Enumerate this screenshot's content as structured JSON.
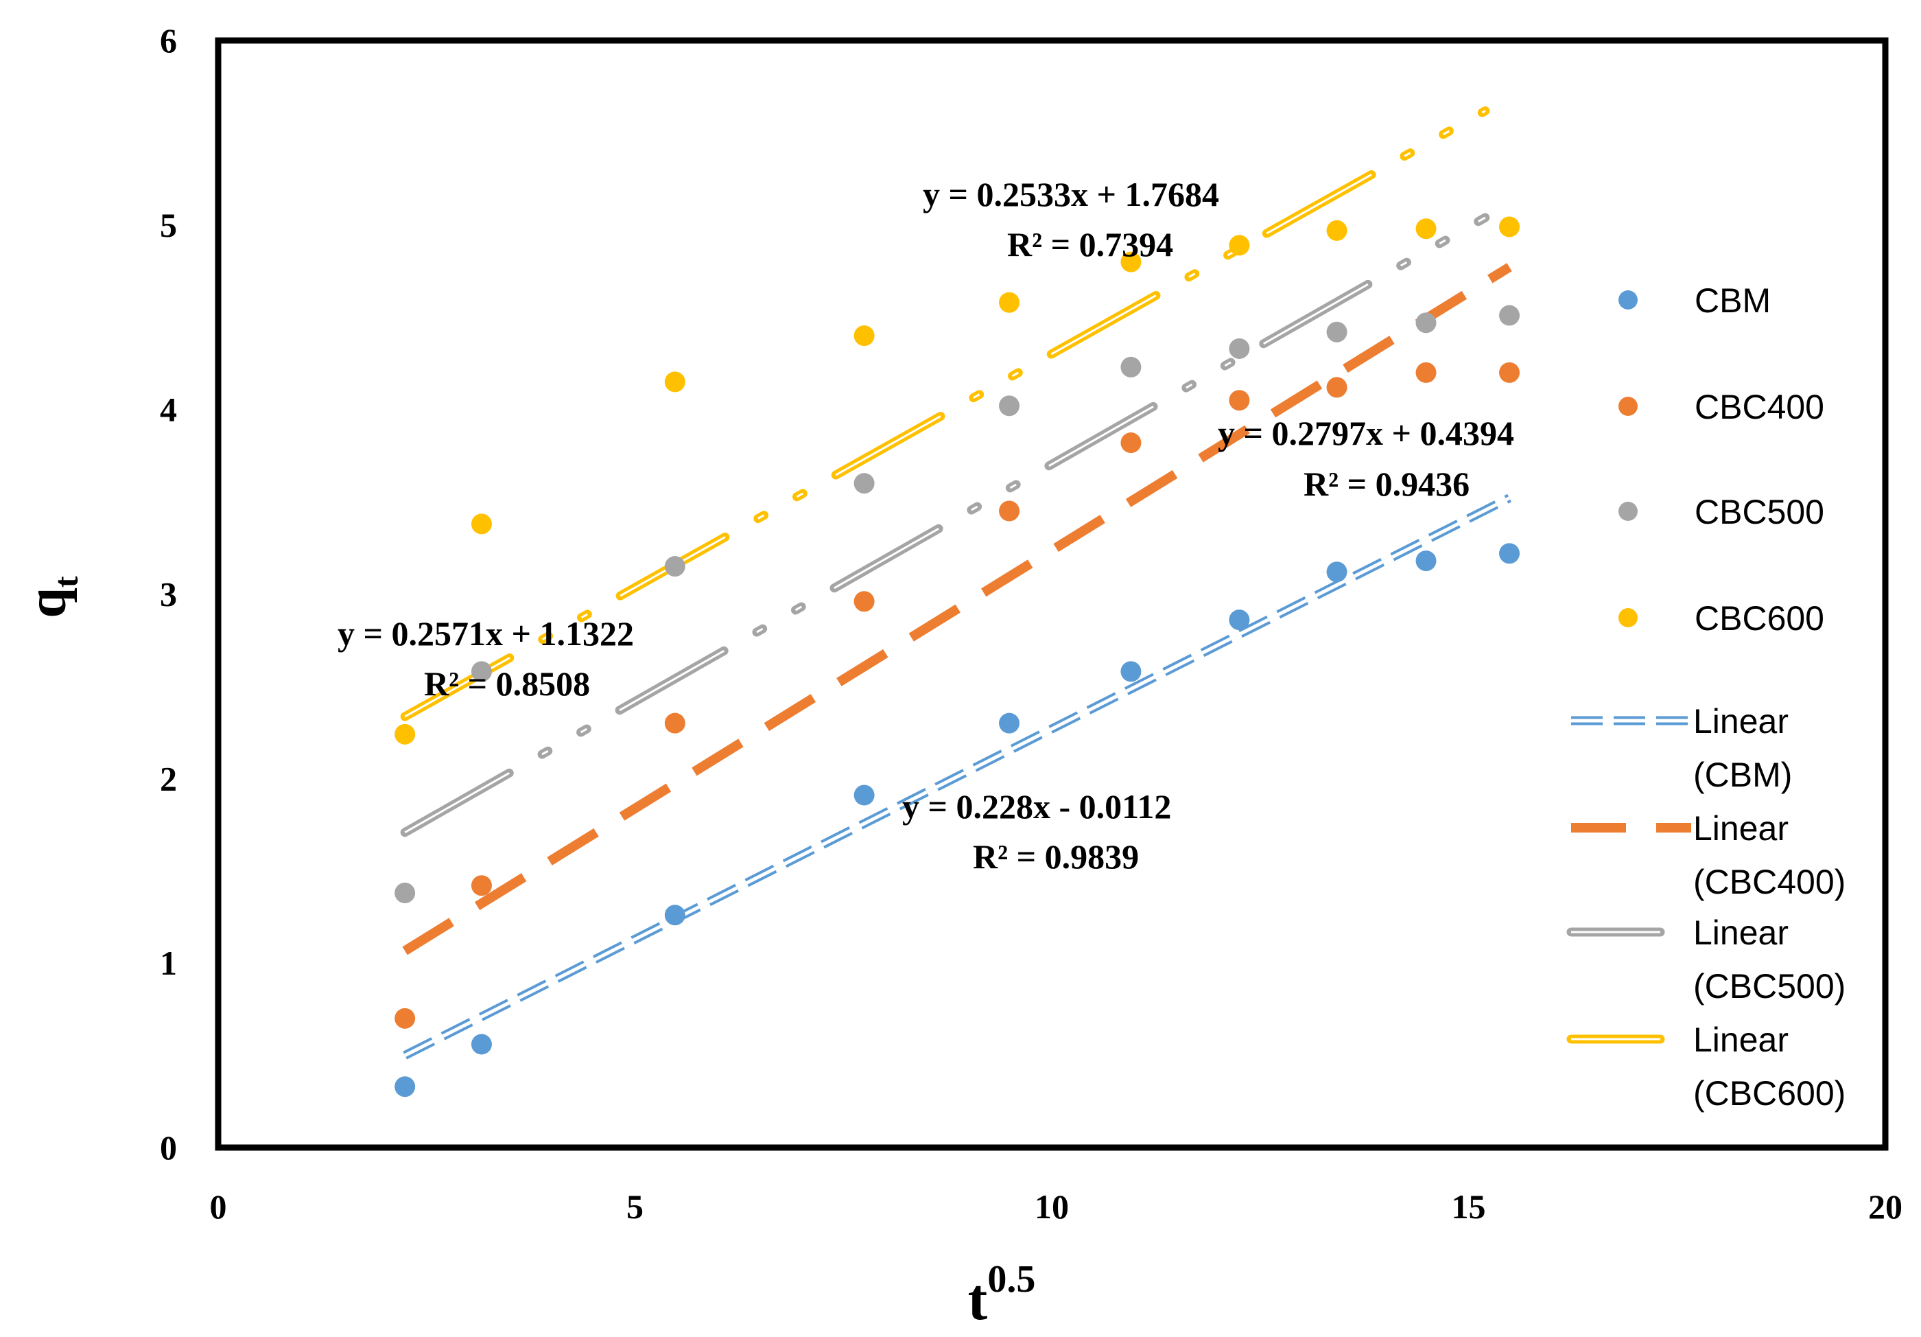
{
  "chart_data": {
    "type": "scatter",
    "title": "",
    "xlabel": "t",
    "xlabel_sup": "0.5",
    "ylabel": "q",
    "ylabel_sub": "t",
    "xlim": [
      0,
      20
    ],
    "ylim": [
      0,
      6
    ],
    "x_ticks": [
      "0",
      "5",
      "10",
      "15",
      "20"
    ],
    "y_ticks": [
      "0",
      "1",
      "2",
      "3",
      "4",
      "5",
      "6"
    ],
    "grid": false,
    "legend_position": "right",
    "x": [
      2.24,
      3.16,
      5.48,
      7.75,
      9.49,
      10.95,
      12.25,
      13.42,
      14.49,
      15.49
    ],
    "series": [
      {
        "name": "CBM",
        "color": "#5B9BD5",
        "values": [
          0.33,
          0.56,
          1.26,
          1.91,
          2.3,
          2.58,
          2.86,
          3.12,
          3.18,
          3.22
        ],
        "trend_label": "Linear (CBM)",
        "trend_label_lines": [
          "Linear",
          "(CBM)"
        ],
        "trend_style": "double-dash",
        "trend_x": [
          2.24,
          15.49
        ],
        "equation": "y = 0.228x - 0.0112",
        "r2": "R² = 0.9839",
        "slope": 0.228,
        "intercept": -0.0112
      },
      {
        "name": "CBC400",
        "color": "#ED7D31",
        "values": [
          0.7,
          1.42,
          2.3,
          2.96,
          3.45,
          3.82,
          4.05,
          4.12,
          4.2,
          4.2
        ],
        "trend_label": "Linear (CBC400)",
        "trend_label_lines": [
          "Linear",
          "(CBC400)"
        ],
        "trend_style": "dash",
        "trend_x": [
          2.24,
          15.49
        ],
        "equation": "y = 0.2797x + 0.4394",
        "r2": "R² = 0.9436",
        "slope": 0.2797,
        "intercept": 0.4394
      },
      {
        "name": "CBC500",
        "color": "#A5A5A5",
        "values": [
          1.38,
          2.58,
          3.15,
          3.6,
          4.02,
          4.23,
          4.33,
          4.42,
          4.47,
          4.51
        ],
        "trend_label": "Linear (CBC500)",
        "trend_label_lines": [
          "Linear",
          "(CBC500)"
        ],
        "trend_style": "dash-dot-double",
        "trend_x": [
          2.24,
          15.2
        ],
        "equation": "y = 0.2571x + 1.1322",
        "r2": "R² = 0.8508",
        "slope": 0.2571,
        "intercept": 1.1322
      },
      {
        "name": "CBC600",
        "color": "#FFC000",
        "values": [
          2.24,
          3.38,
          4.15,
          4.4,
          4.58,
          4.8,
          4.89,
          4.97,
          4.98,
          4.99
        ],
        "trend_label": "Linear (CBC600)",
        "trend_label_lines": [
          "Linear",
          "(CBC600)"
        ],
        "trend_style": "dash-dot-double",
        "trend_x": [
          2.24,
          15.2
        ],
        "equation": "y = 0.2533x + 1.7684",
        "r2": "R² = 0.7394",
        "slope": 0.2533,
        "intercept": 1.7684
      }
    ]
  }
}
